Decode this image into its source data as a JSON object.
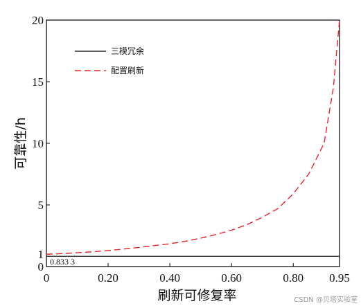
{
  "chart_data": {
    "type": "line",
    "xlabel": "刷新可修复率",
    "ylabel": "可靠性/h",
    "xlim": [
      0,
      0.95
    ],
    "ylim": [
      0,
      20
    ],
    "x_ticks": [
      "0",
      "0.20",
      "0.40",
      "0.60",
      "0.80",
      "0.95"
    ],
    "x_tick_values": [
      0,
      0.2,
      0.4,
      0.6,
      0.8,
      0.95
    ],
    "y_ticks": [
      "0",
      "1",
      "5",
      "10",
      "15",
      "20"
    ],
    "y_tick_values": [
      0,
      1,
      5,
      10,
      15,
      20
    ],
    "legend_position": "top-left",
    "annotation": "0.833 3",
    "series": [
      {
        "name": "三模冗余",
        "style": "solid",
        "color": "#000000",
        "x": [
          0,
          0.95
        ],
        "y": [
          0.8333,
          0.8333
        ]
      },
      {
        "name": "配置刷新",
        "style": "dashed",
        "color": "#e8232a",
        "x": [
          0,
          0.05,
          0.1,
          0.15,
          0.2,
          0.25,
          0.3,
          0.35,
          0.4,
          0.45,
          0.5,
          0.55,
          0.6,
          0.65,
          0.7,
          0.75,
          0.8,
          0.85,
          0.9,
          0.93,
          0.95
        ],
        "y": [
          1.0,
          1.05,
          1.12,
          1.2,
          1.3,
          1.42,
          1.55,
          1.7,
          1.85,
          2.05,
          2.3,
          2.6,
          2.95,
          3.4,
          4.0,
          4.7,
          5.9,
          7.5,
          10.0,
          14.5,
          20.0
        ]
      }
    ]
  },
  "watermark": "CSDN @贝塔实验室"
}
